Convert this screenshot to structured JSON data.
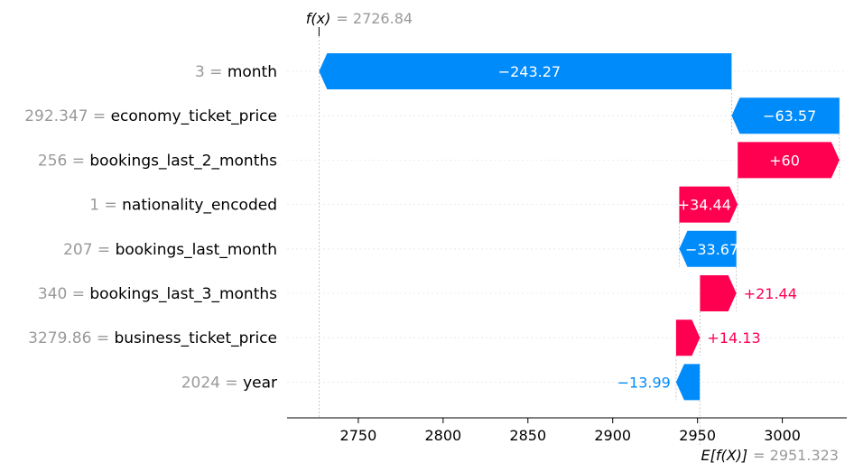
{
  "chart_data": {
    "type": "waterfall",
    "fx": {
      "label": "f(x)",
      "value": "2726.84"
    },
    "base": {
      "label": "E[f(X)]",
      "value": "2951.323"
    },
    "base_value": 2951.323,
    "final_value": 2726.84,
    "features": [
      {
        "value": "3",
        "name": "month",
        "contribution": -243.27,
        "label": "−243.27"
      },
      {
        "value": "292.347",
        "name": "economy_ticket_price",
        "contribution": -63.57,
        "label": "−63.57"
      },
      {
        "value": "256",
        "name": "bookings_last_2_months",
        "contribution": 60,
        "label": "+60"
      },
      {
        "value": "1",
        "name": "nationality_encoded",
        "contribution": 34.44,
        "label": "+34.44"
      },
      {
        "value": "207",
        "name": "bookings_last_month",
        "contribution": -33.67,
        "label": "−33.67"
      },
      {
        "value": "340",
        "name": "bookings_last_3_months",
        "contribution": 21.44,
        "label": "+21.44"
      },
      {
        "value": "3279.86",
        "name": "business_ticket_price",
        "contribution": 14.13,
        "label": "+14.13"
      },
      {
        "value": "2024",
        "name": "year",
        "contribution": -13.99,
        "label": "−13.99"
      }
    ],
    "x_ticks": [
      2750,
      2800,
      2850,
      2900,
      2950,
      3000
    ],
    "xlim": [
      2708,
      3038
    ],
    "colors": {
      "positive": "#ff0051",
      "negative": "#008bfb",
      "muted": "#999999",
      "text": "#000000",
      "white": "#ffffff"
    }
  }
}
